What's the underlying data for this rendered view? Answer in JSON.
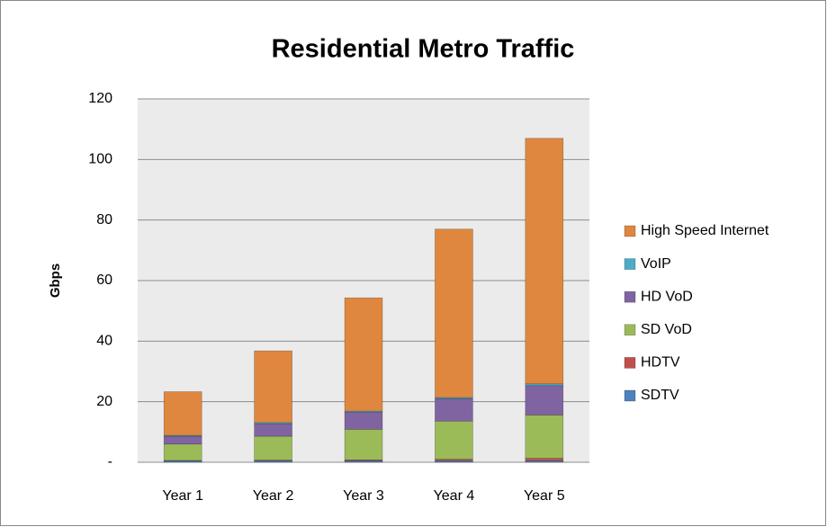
{
  "chart_data": {
    "type": "stacked_bar",
    "title": "Residential Metro Traffic",
    "y_label": "Gbps",
    "categories": [
      "Year 1",
      "Year 2",
      "Year 3",
      "Year 4",
      "Year 5"
    ],
    "series": [
      {
        "name": "SDTV",
        "color": "#4f81bd",
        "values": [
          0.5,
          0.5,
          0.5,
          0.5,
          0.5
        ]
      },
      {
        "name": "HDTV",
        "color": "#c0504d",
        "values": [
          0.1,
          0.2,
          0.3,
          0.5,
          0.8
        ]
      },
      {
        "name": "SD VoD",
        "color": "#9bbb59",
        "values": [
          5.4,
          7.9,
          10.1,
          12.6,
          14.3
        ]
      },
      {
        "name": "HD VoD",
        "color": "#8064a2",
        "values": [
          2.6,
          4.1,
          5.6,
          7.4,
          9.7
        ]
      },
      {
        "name": "VoIP",
        "color": "#4bacc6",
        "values": [
          0.3,
          0.4,
          0.4,
          0.4,
          0.6
        ]
      },
      {
        "name": "High Speed Internet",
        "color": "#e0873f",
        "values": [
          14.4,
          23.7,
          37.4,
          55.6,
          81.1
        ]
      }
    ],
    "ylim": [
      0,
      120
    ],
    "yticks": [
      {
        "value": 0,
        "label": "-"
      },
      20,
      40,
      60,
      80,
      100,
      120
    ],
    "grid": true,
    "legend": "right"
  }
}
